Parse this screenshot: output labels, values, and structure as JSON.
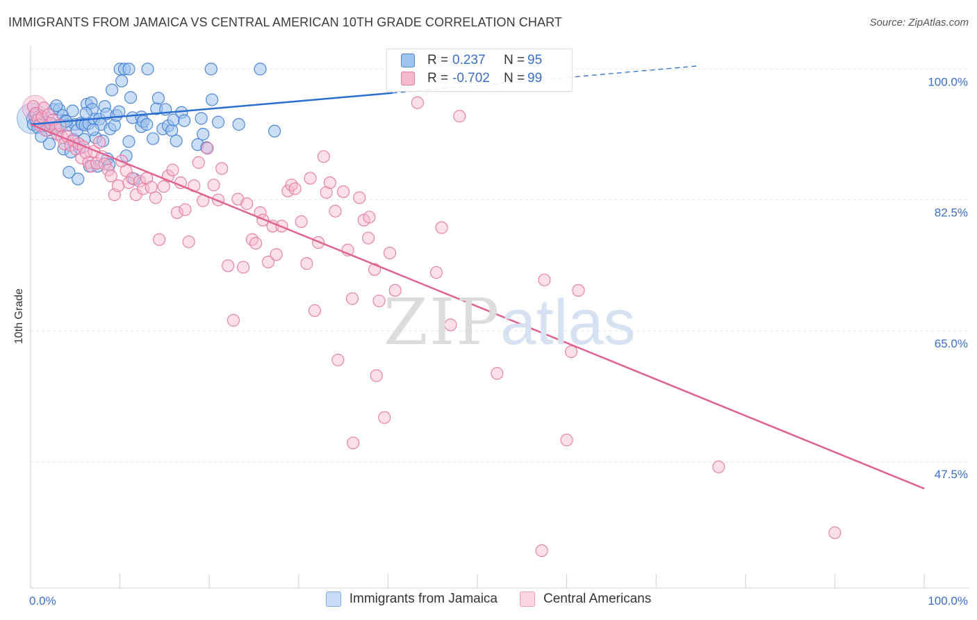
{
  "title": "IMMIGRANTS FROM JAMAICA VS CENTRAL AMERICAN 10TH GRADE CORRELATION CHART",
  "source": "Source: ZipAtlas.com",
  "watermark": {
    "zip": "ZIP",
    "atlas": "atlas"
  },
  "colors": {
    "blue_fill": "#9ec3ef",
    "blue_stroke": "#4f86d4",
    "blue_line": "#2a6fcf",
    "pink_fill": "#f6b9ce",
    "pink_stroke": "#e47aa1",
    "pink_line": "#e0638f",
    "grid": "#e2e2e2",
    "tick_label": "#3a6fc4"
  },
  "legend": {
    "rows": [
      {
        "r_label": "R =",
        "r_value": "0.237",
        "n_label": "N =",
        "n_value": "95",
        "color": "#9ec3ef"
      },
      {
        "r_label": "R =",
        "r_value": "-0.702",
        "n_label": "N =",
        "n_value": "99",
        "color": "#f6b9ce"
      }
    ]
  },
  "bottom_legend": [
    {
      "label": "Immigrants from Jamaica",
      "color": "#9ec3ef"
    },
    {
      "label": "Central Americans",
      "color": "#f6b9ce"
    }
  ],
  "chart_data": {
    "type": "scatter",
    "title": "IMMIGRANTS FROM JAMAICA VS CENTRAL AMERICAN 10TH GRADE CORRELATION CHART",
    "xlabel": "",
    "ylabel": "10th Grade",
    "x_tick_labels": [
      "0.0%",
      "100.0%"
    ],
    "y_ticks": [
      47.5,
      65.0,
      82.5,
      100.0
    ],
    "y_tick_labels": [
      "47.5%",
      "65.0%",
      "82.5%",
      "100.0%"
    ],
    "xlim": [
      0,
      100
    ],
    "ylim": [
      30.6,
      101.8
    ],
    "grid": true,
    "legend_placement": "top-center",
    "series": [
      {
        "name": "Immigrants from Jamaica",
        "color": "#9ec3ef",
        "r": 0.237,
        "n": 95,
        "trend": {
          "x": [
            0,
            40.5
          ],
          "y": [
            92.6,
            96.8
          ]
        },
        "trend_dashed": {
          "x": [
            40.5,
            74.5
          ],
          "y": [
            96.8,
            100.4
          ]
        },
        "points": [
          [
            0.2,
            93.4
          ],
          [
            0.3,
            92.6
          ],
          [
            0.5,
            94.0
          ],
          [
            0.6,
            93.2
          ],
          [
            0.8,
            92.2
          ],
          [
            1.0,
            93.8
          ],
          [
            1.1,
            92.9
          ],
          [
            1.3,
            93.6
          ],
          [
            1.5,
            92.4
          ],
          [
            1.7,
            92.9
          ],
          [
            1.9,
            91.8
          ],
          [
            2.1,
            90.0
          ],
          [
            2.3,
            92.8
          ],
          [
            2.6,
            94.6
          ],
          [
            2.8,
            92.3
          ],
          [
            3.0,
            91.3
          ],
          [
            3.2,
            94.6
          ],
          [
            3.4,
            92.2
          ],
          [
            3.6,
            93.8
          ],
          [
            3.7,
            89.3
          ],
          [
            3.9,
            93.1
          ],
          [
            4.1,
            92.5
          ],
          [
            4.3,
            86.2
          ],
          [
            4.5,
            88.9
          ],
          [
            4.7,
            94.4
          ],
          [
            4.8,
            90.6
          ],
          [
            5.0,
            92.6
          ],
          [
            5.2,
            91.8
          ],
          [
            5.3,
            85.3
          ],
          [
            5.5,
            89.4
          ],
          [
            5.7,
            92.8
          ],
          [
            5.8,
            92.6
          ],
          [
            6.0,
            90.6
          ],
          [
            6.1,
            92.5
          ],
          [
            6.3,
            95.3
          ],
          [
            6.5,
            92.7
          ],
          [
            6.6,
            87.0
          ],
          [
            6.8,
            95.5
          ],
          [
            6.9,
            94.6
          ],
          [
            7.1,
            93.3
          ],
          [
            7.3,
            90.8
          ],
          [
            7.5,
            87.0
          ],
          [
            7.7,
            93.3
          ],
          [
            7.9,
            92.6
          ],
          [
            8.1,
            90.4
          ],
          [
            8.3,
            95.0
          ],
          [
            8.5,
            94.0
          ],
          [
            8.6,
            88.0
          ],
          [
            8.8,
            87.2
          ],
          [
            8.9,
            92.0
          ],
          [
            9.1,
            97.2
          ],
          [
            9.4,
            92.5
          ],
          [
            9.6,
            93.8
          ],
          [
            9.9,
            94.3
          ],
          [
            10.0,
            100.0
          ],
          [
            10.2,
            98.4
          ],
          [
            10.5,
            100.0
          ],
          [
            10.7,
            88.4
          ],
          [
            11.0,
            90.3
          ],
          [
            11.0,
            100.0
          ],
          [
            11.2,
            96.2
          ],
          [
            11.4,
            93.5
          ],
          [
            11.6,
            85.3
          ],
          [
            12.4,
            92.3
          ],
          [
            12.4,
            93.6
          ],
          [
            12.6,
            93.0
          ],
          [
            13.0,
            92.6
          ],
          [
            13.1,
            100.0
          ],
          [
            13.7,
            90.7
          ],
          [
            14.1,
            94.7
          ],
          [
            14.3,
            96.1
          ],
          [
            14.8,
            92.0
          ],
          [
            15.1,
            94.6
          ],
          [
            15.4,
            92.4
          ],
          [
            15.8,
            91.8
          ],
          [
            16.0,
            93.2
          ],
          [
            16.3,
            90.4
          ],
          [
            16.9,
            94.2
          ],
          [
            17.2,
            93.1
          ],
          [
            18.7,
            89.9
          ],
          [
            19.1,
            93.4
          ],
          [
            19.3,
            91.3
          ],
          [
            19.7,
            89.5
          ],
          [
            20.2,
            100.0
          ],
          [
            20.3,
            95.9
          ],
          [
            21.0,
            92.9
          ],
          [
            23.3,
            92.6
          ],
          [
            25.7,
            100.0
          ],
          [
            27.3,
            91.7
          ],
          [
            1.2,
            91.0
          ],
          [
            2.9,
            95.1
          ],
          [
            4.0,
            93.0
          ],
          [
            6.2,
            94.1
          ],
          [
            7.0,
            91.9
          ],
          [
            0.4,
            93.9
          ]
        ]
      },
      {
        "name": "Central Americans",
        "color": "#f6b9ce",
        "r": -0.702,
        "n": 99,
        "trend": {
          "x": [
            0,
            100
          ],
          "y": [
            92.6,
            43.9
          ]
        },
        "points": [
          [
            0.3,
            95.0
          ],
          [
            0.6,
            94.1
          ],
          [
            0.8,
            93.2
          ],
          [
            1.0,
            92.5
          ],
          [
            1.3,
            93.6
          ],
          [
            1.5,
            94.8
          ],
          [
            1.7,
            91.8
          ],
          [
            2.0,
            93.9
          ],
          [
            2.2,
            92.7
          ],
          [
            2.5,
            93.2
          ],
          [
            2.8,
            92.0
          ],
          [
            3.0,
            91.3
          ],
          [
            3.3,
            92.5
          ],
          [
            3.5,
            90.9
          ],
          [
            3.8,
            90.0
          ],
          [
            4.1,
            91.0
          ],
          [
            4.5,
            89.8
          ],
          [
            4.8,
            90.4
          ],
          [
            5.1,
            89.3
          ],
          [
            5.4,
            90.0
          ],
          [
            5.7,
            88.1
          ],
          [
            5.9,
            89.6
          ],
          [
            6.2,
            88.8
          ],
          [
            6.5,
            87.5
          ],
          [
            6.8,
            87.0
          ],
          [
            7.1,
            89.0
          ],
          [
            7.4,
            87.4
          ],
          [
            7.7,
            90.2
          ],
          [
            8.0,
            88.3
          ],
          [
            8.3,
            87.3
          ],
          [
            8.7,
            86.5
          ],
          [
            9.0,
            85.7
          ],
          [
            9.4,
            83.2
          ],
          [
            9.8,
            84.4
          ],
          [
            10.2,
            87.7
          ],
          [
            10.7,
            86.4
          ],
          [
            11.0,
            84.8
          ],
          [
            11.4,
            85.4
          ],
          [
            11.8,
            83.2
          ],
          [
            12.2,
            85.0
          ],
          [
            12.6,
            84.0
          ],
          [
            13.0,
            85.4
          ],
          [
            13.5,
            84.2
          ],
          [
            14.0,
            82.8
          ],
          [
            14.4,
            77.2
          ],
          [
            14.9,
            84.3
          ],
          [
            15.4,
            85.7
          ],
          [
            15.9,
            86.5
          ],
          [
            16.4,
            80.8
          ],
          [
            16.8,
            84.8
          ],
          [
            17.3,
            81.2
          ],
          [
            17.7,
            76.9
          ],
          [
            18.3,
            84.4
          ],
          [
            18.8,
            87.5
          ],
          [
            19.3,
            82.4
          ],
          [
            19.8,
            89.4
          ],
          [
            20.5,
            84.5
          ],
          [
            21.0,
            82.5
          ],
          [
            21.4,
            86.7
          ],
          [
            22.1,
            73.7
          ],
          [
            22.7,
            66.4
          ],
          [
            23.2,
            82.6
          ],
          [
            23.8,
            73.5
          ],
          [
            24.2,
            82.0
          ],
          [
            24.8,
            77.2
          ],
          [
            25.2,
            76.7
          ],
          [
            25.7,
            80.8
          ],
          [
            26.0,
            79.8
          ],
          [
            26.6,
            74.2
          ],
          [
            27.1,
            79.0
          ],
          [
            27.5,
            75.2
          ],
          [
            28.1,
            79.0
          ],
          [
            28.8,
            83.7
          ],
          [
            29.2,
            84.5
          ],
          [
            29.6,
            84.0
          ],
          [
            30.3,
            79.6
          ],
          [
            30.9,
            74.0
          ],
          [
            31.3,
            85.4
          ],
          [
            31.8,
            67.7
          ],
          [
            32.2,
            76.8
          ],
          [
            32.8,
            88.3
          ],
          [
            33.1,
            83.5
          ],
          [
            33.5,
            84.8
          ],
          [
            34.1,
            81.0
          ],
          [
            34.4,
            61.1
          ],
          [
            35.0,
            83.6
          ],
          [
            35.5,
            75.8
          ],
          [
            36.0,
            69.3
          ],
          [
            36.8,
            82.8
          ],
          [
            37.3,
            79.8
          ],
          [
            37.8,
            77.4
          ],
          [
            37.9,
            80.2
          ],
          [
            38.5,
            73.2
          ],
          [
            38.7,
            59.0
          ],
          [
            39.0,
            69.0
          ],
          [
            39.6,
            53.4
          ],
          [
            40.2,
            75.4
          ],
          [
            40.8,
            70.4
          ],
          [
            36.1,
            50.0
          ]
        ],
        "extra_points": [
          [
            43.3,
            95.5
          ],
          [
            45.4,
            72.8
          ],
          [
            46.0,
            78.8
          ],
          [
            47.0,
            65.8
          ],
          [
            48.0,
            93.7
          ],
          [
            52.2,
            59.3
          ],
          [
            57.5,
            71.8
          ],
          [
            57.2,
            35.6
          ],
          [
            60.0,
            50.4
          ],
          [
            60.5,
            62.2
          ],
          [
            61.3,
            70.4
          ],
          [
            77.0,
            46.8
          ],
          [
            90.0,
            38.0
          ]
        ]
      }
    ]
  }
}
